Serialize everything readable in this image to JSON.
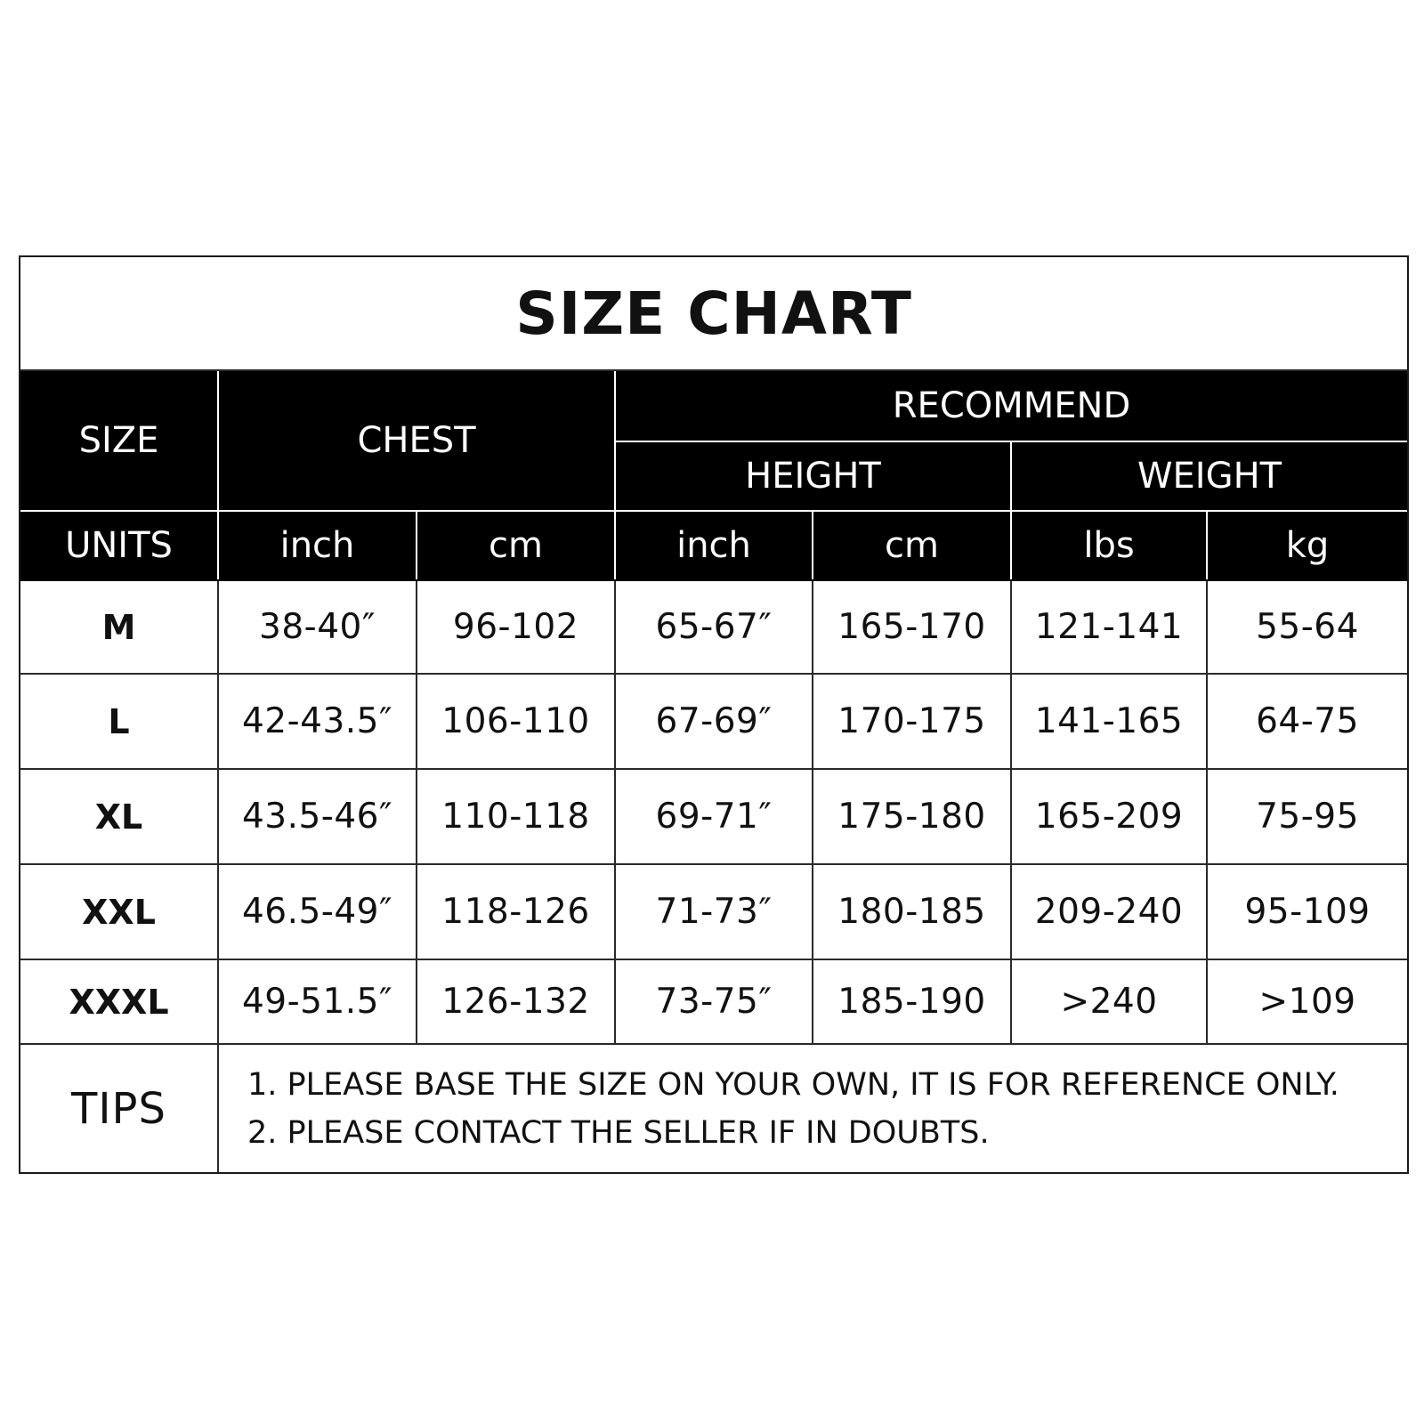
{
  "title": "SIZE CHART",
  "headers": {
    "size": "SIZE",
    "chest": "CHEST",
    "recommend": "RECOMMEND",
    "height": "HEIGHT",
    "weight": "WEIGHT",
    "units_label": "UNITS",
    "units": [
      "inch",
      "cm",
      "inch",
      "cm",
      "lbs",
      "kg"
    ]
  },
  "rows": [
    {
      "size": "M",
      "chest_inch": "38-40″",
      "chest_cm": "96-102",
      "height_inch": "65-67″",
      "height_cm": "165-170",
      "weight_lbs": "121-141",
      "weight_kg": "55-64"
    },
    {
      "size": "L",
      "chest_inch": "42-43.5″",
      "chest_cm": "106-110",
      "height_inch": "67-69″",
      "height_cm": "170-175",
      "weight_lbs": "141-165",
      "weight_kg": "64-75"
    },
    {
      "size": "XL",
      "chest_inch": "43.5-46″",
      "chest_cm": "110-118",
      "height_inch": "69-71″",
      "height_cm": "175-180",
      "weight_lbs": "165-209",
      "weight_kg": "75-95"
    },
    {
      "size": "XXL",
      "chest_inch": "46.5-49″",
      "chest_cm": "118-126",
      "height_inch": "71-73″",
      "height_cm": "180-185",
      "weight_lbs": "209-240",
      "weight_kg": "95-109"
    },
    {
      "size": "XXXL",
      "chest_inch": "49-51.5″",
      "chest_cm": "126-132",
      "height_inch": "73-75″",
      "height_cm": "185-190",
      "weight_lbs": ">240",
      "weight_kg": ">109"
    }
  ],
  "tips": {
    "label": "TIPS",
    "lines": [
      "1. PLEASE BASE THE SIZE ON YOUR OWN, IT IS FOR REFERENCE ONLY.",
      "2. PLEASE CONTACT THE SELLER IF IN DOUBTS."
    ]
  },
  "colors": {
    "header_background": "#000000",
    "header_text": "#ffffff",
    "body_background": "#ffffff",
    "body_text": "#111111",
    "grid_lines": "#2a2a2a"
  }
}
